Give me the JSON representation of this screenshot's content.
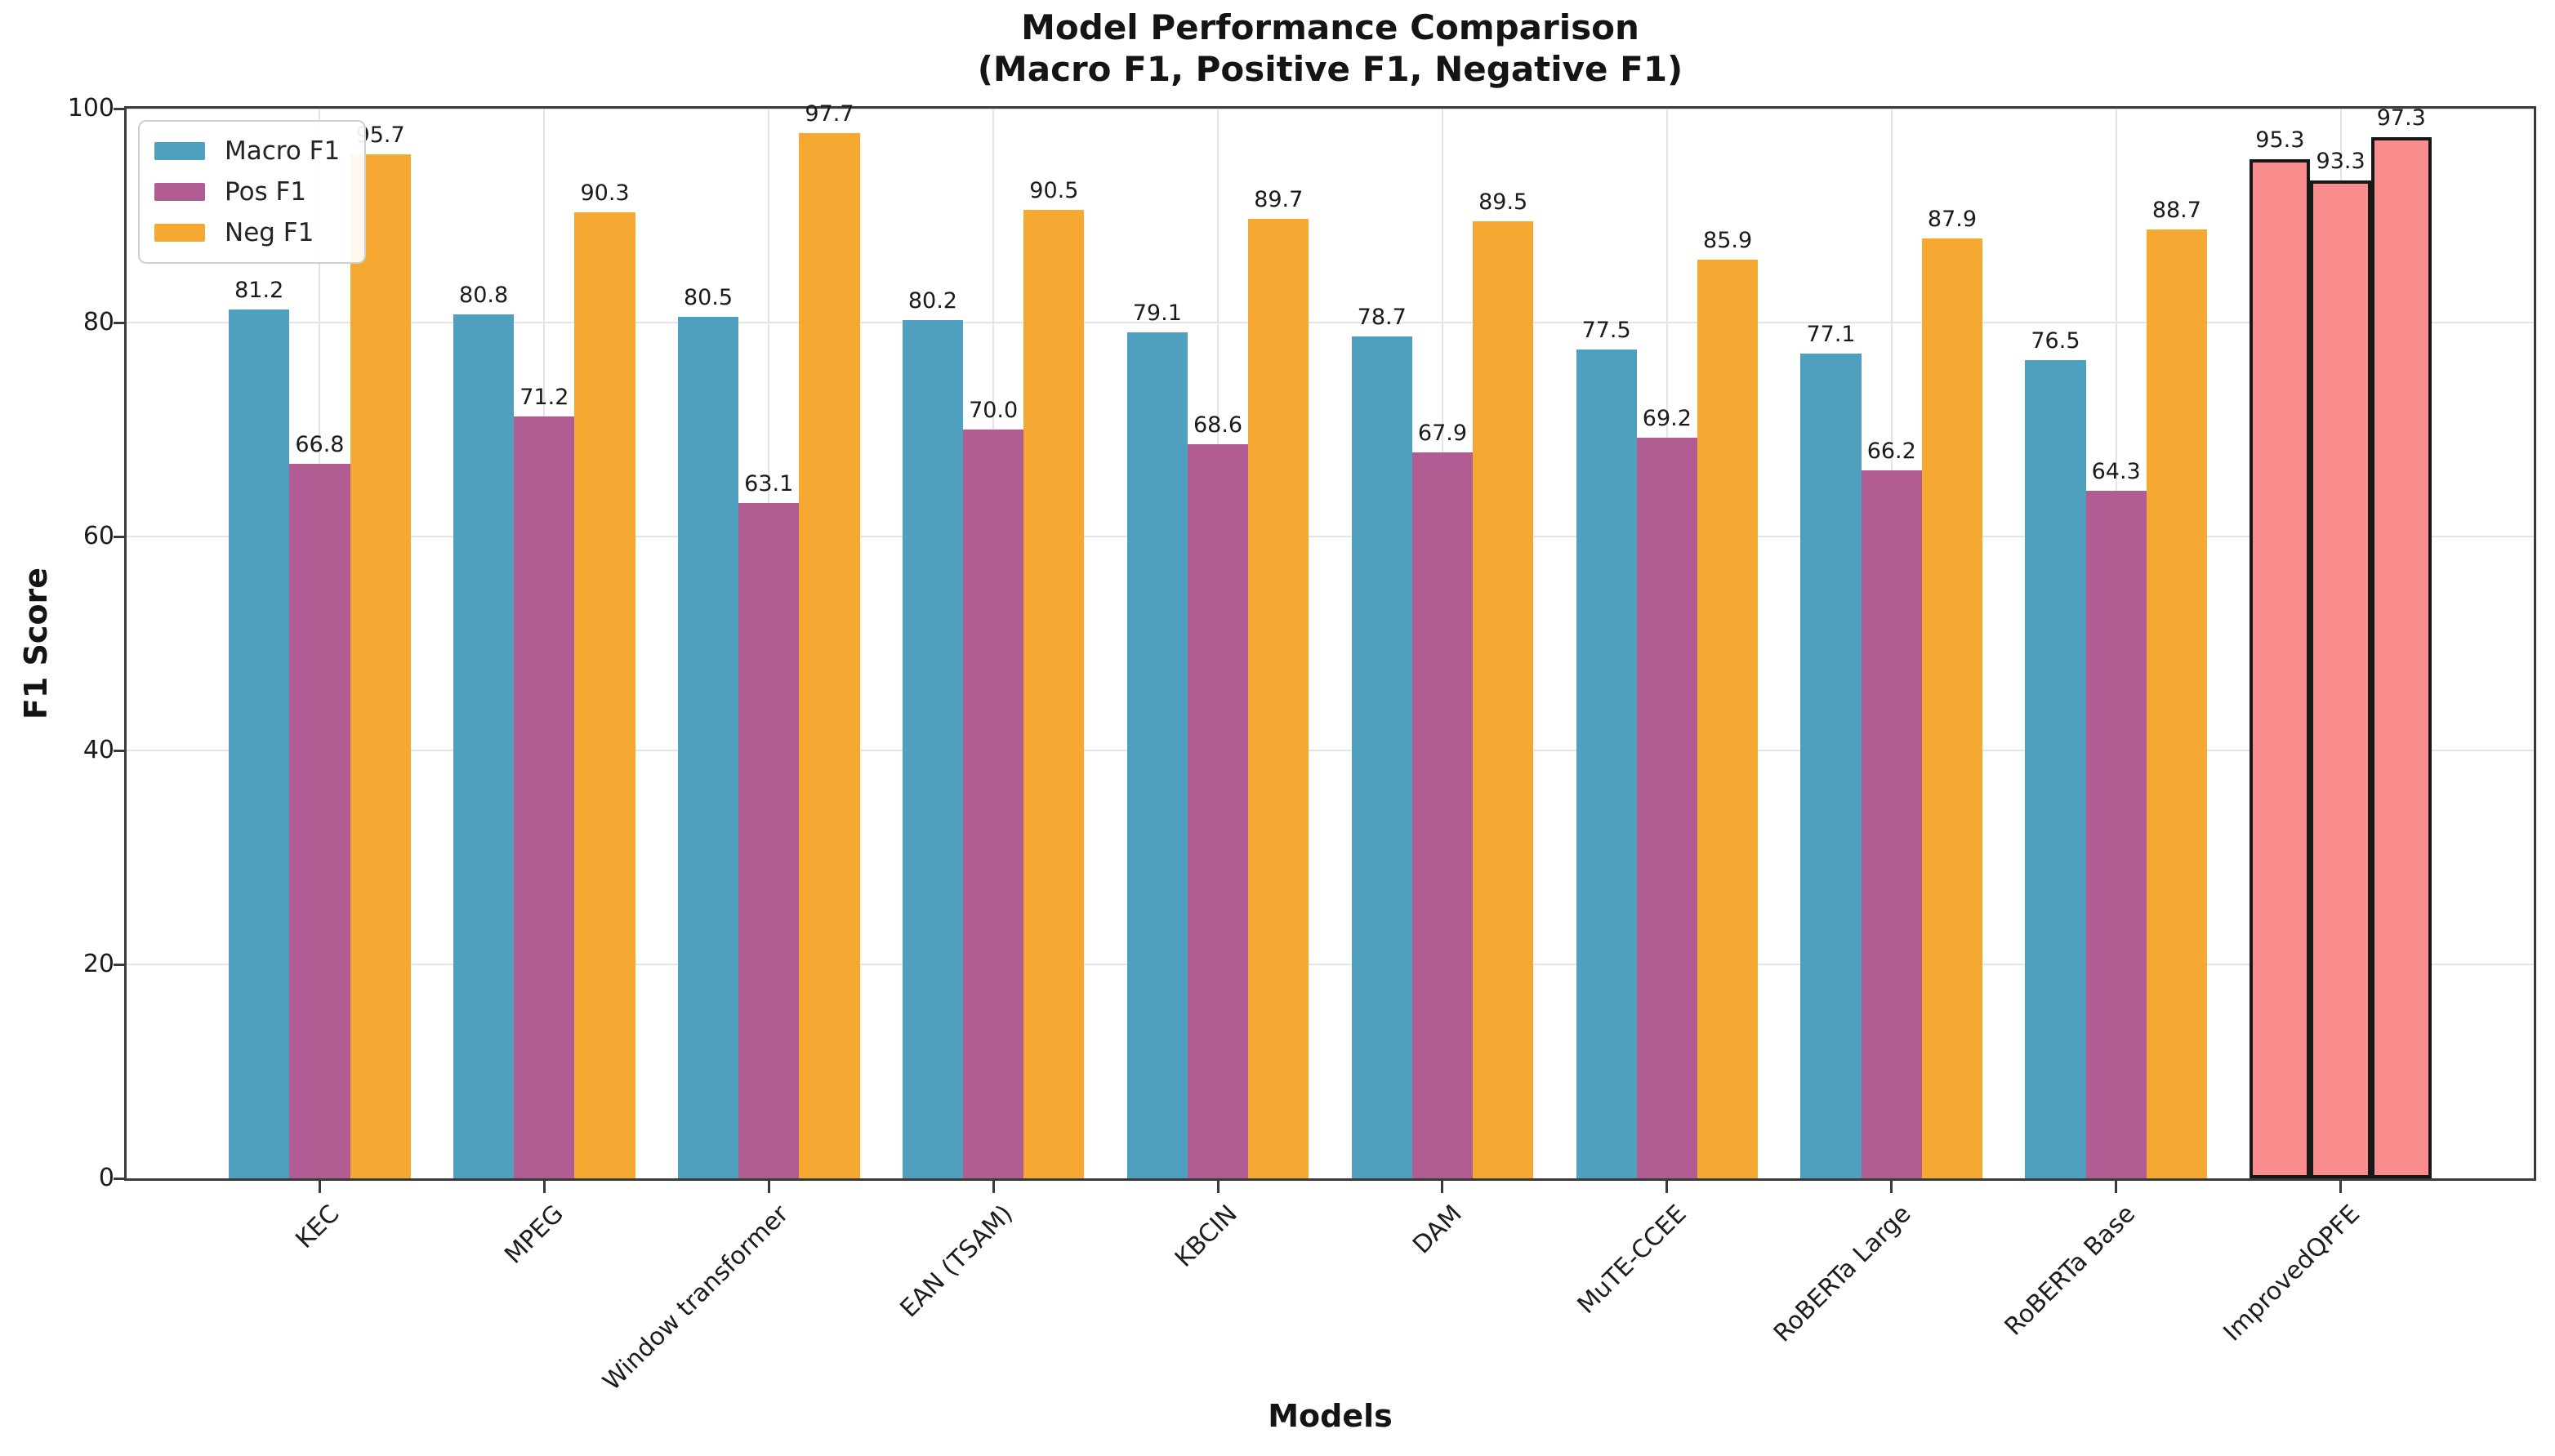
{
  "chart_data": {
    "type": "bar",
    "title": "Model Performance Comparison",
    "subtitle": "(Macro F1, Positive F1, Negative F1)",
    "xlabel": "Models",
    "ylabel": "F1 Score",
    "ylim": [
      0,
      100
    ],
    "yticks": [
      0,
      20,
      40,
      60,
      80,
      100
    ],
    "grid": true,
    "legend_position": "upper left",
    "categories": [
      "KEC",
      "MPEG",
      "Window transformer",
      "EAN (TSAM)",
      "KBCIN",
      "DAM",
      "MuTE-CCEE",
      "RoBERTa Large",
      "RoBERTa Base",
      "ImprovedQPFE"
    ],
    "series": [
      {
        "name": "Macro F1",
        "color": "#4FA0BE",
        "values": [
          81.2,
          80.8,
          80.5,
          80.2,
          79.1,
          78.7,
          77.5,
          77.1,
          76.5,
          95.3
        ]
      },
      {
        "name": "Pos F1",
        "color": "#B15C93",
        "values": [
          66.8,
          71.2,
          63.1,
          70.0,
          68.6,
          67.9,
          69.2,
          66.2,
          64.3,
          93.3
        ]
      },
      {
        "name": "Neg F1",
        "color": "#F5A832",
        "values": [
          95.7,
          90.3,
          97.7,
          90.5,
          89.7,
          89.5,
          85.9,
          87.9,
          88.7,
          97.3
        ]
      }
    ],
    "highlight": {
      "category": "ImprovedQPFE",
      "bar_color": "#F98C8C",
      "edge_color": "#181818"
    },
    "value_label_decimals": 1
  },
  "style_colors": {
    "spine": "#3a3a3a",
    "grid": "#e4e4e4",
    "text": "#1a1a1a",
    "legend_border": "#cfcfcf"
  }
}
